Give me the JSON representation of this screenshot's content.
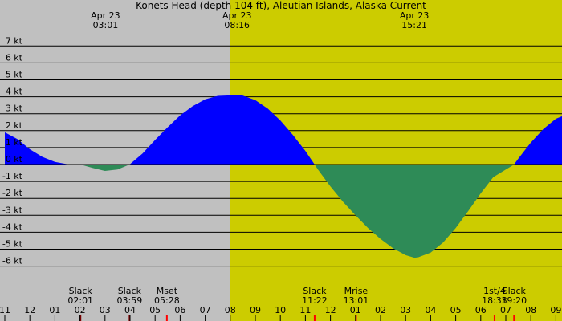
{
  "chart_data": {
    "type": "area",
    "title": "Konets Head (depth 104 ft), Aleutian Islands, Alaska Current",
    "x_unit": "hour (Apr 23, local time)",
    "xlim": [
      11,
      33.5
    ],
    "ylim": [
      -7,
      8
    ],
    "y_ticks": [
      {
        "value": 7,
        "label": "7 kt"
      },
      {
        "value": 6,
        "label": "6 kt"
      },
      {
        "value": 5,
        "label": "5 kt"
      },
      {
        "value": 4,
        "label": "4 kt"
      },
      {
        "value": 3,
        "label": "3 kt"
      },
      {
        "value": 2,
        "label": "2 kt"
      },
      {
        "value": 1,
        "label": "1 kt"
      },
      {
        "value": 0,
        "label": "0 kt"
      },
      {
        "value": -1,
        "label": "-1 kt"
      },
      {
        "value": -2,
        "label": "-2 kt"
      },
      {
        "value": -3,
        "label": "-3 kt"
      },
      {
        "value": -4,
        "label": "-4 kt"
      },
      {
        "value": -5,
        "label": "-5 kt"
      },
      {
        "value": -6,
        "label": "-6 kt"
      }
    ],
    "x_ticks": [
      {
        "value": 11,
        "label": "11"
      },
      {
        "value": 12,
        "label": "12"
      },
      {
        "value": 13,
        "label": "01"
      },
      {
        "value": 14,
        "label": "02"
      },
      {
        "value": 15,
        "label": "03"
      },
      {
        "value": 16,
        "label": "04"
      },
      {
        "value": 17,
        "label": "05"
      },
      {
        "value": 18,
        "label": "06"
      },
      {
        "value": 19,
        "label": "07"
      },
      {
        "value": 20,
        "label": "08"
      },
      {
        "value": 21,
        "label": "09"
      },
      {
        "value": 22,
        "label": "10"
      },
      {
        "value": 23,
        "label": "11"
      },
      {
        "value": 24,
        "label": "12"
      },
      {
        "value": 25,
        "label": "01"
      },
      {
        "value": 26,
        "label": "02"
      },
      {
        "value": 27,
        "label": "03"
      },
      {
        "value": 28,
        "label": "04"
      },
      {
        "value": 29,
        "label": "05"
      },
      {
        "value": 30,
        "label": "06"
      },
      {
        "value": 31,
        "label": "07"
      },
      {
        "value": 32,
        "label": "08"
      },
      {
        "value": 33,
        "label": "09"
      }
    ],
    "night_end": 20.0,
    "series": [
      {
        "points": [
          [
            11.0,
            1.9
          ],
          [
            11.5,
            1.5
          ],
          [
            12.0,
            0.9
          ],
          [
            12.5,
            0.45
          ],
          [
            13.0,
            0.15
          ],
          [
            13.5,
            0.02
          ],
          [
            14.02,
            0.0
          ],
          [
            14.5,
            -0.2
          ],
          [
            15.0,
            -0.38
          ],
          [
            15.5,
            -0.3
          ],
          [
            15.98,
            0.0
          ],
          [
            16.5,
            0.65
          ],
          [
            17.0,
            1.45
          ],
          [
            17.5,
            2.2
          ],
          [
            18.0,
            2.9
          ],
          [
            18.5,
            3.45
          ],
          [
            19.0,
            3.85
          ],
          [
            19.5,
            4.05
          ],
          [
            20.27,
            4.1
          ],
          [
            20.5,
            4.07
          ],
          [
            21.0,
            3.8
          ],
          [
            21.5,
            3.3
          ],
          [
            22.0,
            2.6
          ],
          [
            22.5,
            1.75
          ],
          [
            23.0,
            0.8
          ],
          [
            23.37,
            0.0
          ],
          [
            23.5,
            -0.3
          ],
          [
            24.0,
            -1.3
          ],
          [
            24.5,
            -2.2
          ],
          [
            25.0,
            -3.0
          ],
          [
            25.5,
            -3.75
          ],
          [
            26.0,
            -4.4
          ],
          [
            26.5,
            -4.95
          ],
          [
            27.0,
            -5.35
          ],
          [
            27.35,
            -5.5
          ],
          [
            27.5,
            -5.48
          ],
          [
            28.0,
            -5.2
          ],
          [
            28.5,
            -4.6
          ],
          [
            29.0,
            -3.75
          ],
          [
            29.5,
            -2.75
          ],
          [
            30.0,
            -1.7
          ],
          [
            30.5,
            -0.75
          ],
          [
            31.33,
            0.0
          ],
          [
            31.5,
            0.35
          ],
          [
            32.0,
            1.3
          ],
          [
            32.5,
            2.1
          ],
          [
            33.0,
            2.7
          ],
          [
            33.5,
            3.0
          ]
        ]
      }
    ],
    "top_labels": [
      {
        "x": 15.02,
        "date": "Apr 23",
        "time": "03:01"
      },
      {
        "x": 20.27,
        "date": "Apr 23",
        "time": "08:16"
      },
      {
        "x": 27.35,
        "date": "Apr 23",
        "time": "15:21"
      }
    ],
    "events": [
      {
        "x": 14.02,
        "name": "Slack",
        "time": "02:01",
        "marker": "dark"
      },
      {
        "x": 15.98,
        "name": "Slack",
        "time": "03:59",
        "marker": "dark"
      },
      {
        "x": 17.47,
        "name": "Mset",
        "time": "05:28",
        "marker": "red"
      },
      {
        "x": 23.37,
        "name": "Slack",
        "time": "11:22",
        "marker": "red"
      },
      {
        "x": 25.02,
        "name": "Mrise",
        "time": "13:01",
        "marker": "red"
      },
      {
        "x": 30.55,
        "name": "1st/4",
        "time": "18:33",
        "marker": "red"
      },
      {
        "x": 31.33,
        "name": "Slack",
        "time": "19:20",
        "marker": "red"
      }
    ],
    "colors": {
      "flood": "#0000ff",
      "ebb": "#2e8b57",
      "night": "#c0c0c0",
      "day": "#cccc00",
      "grid": "#000000",
      "event_dark": "#800000",
      "event_red": "#ff0000"
    }
  }
}
